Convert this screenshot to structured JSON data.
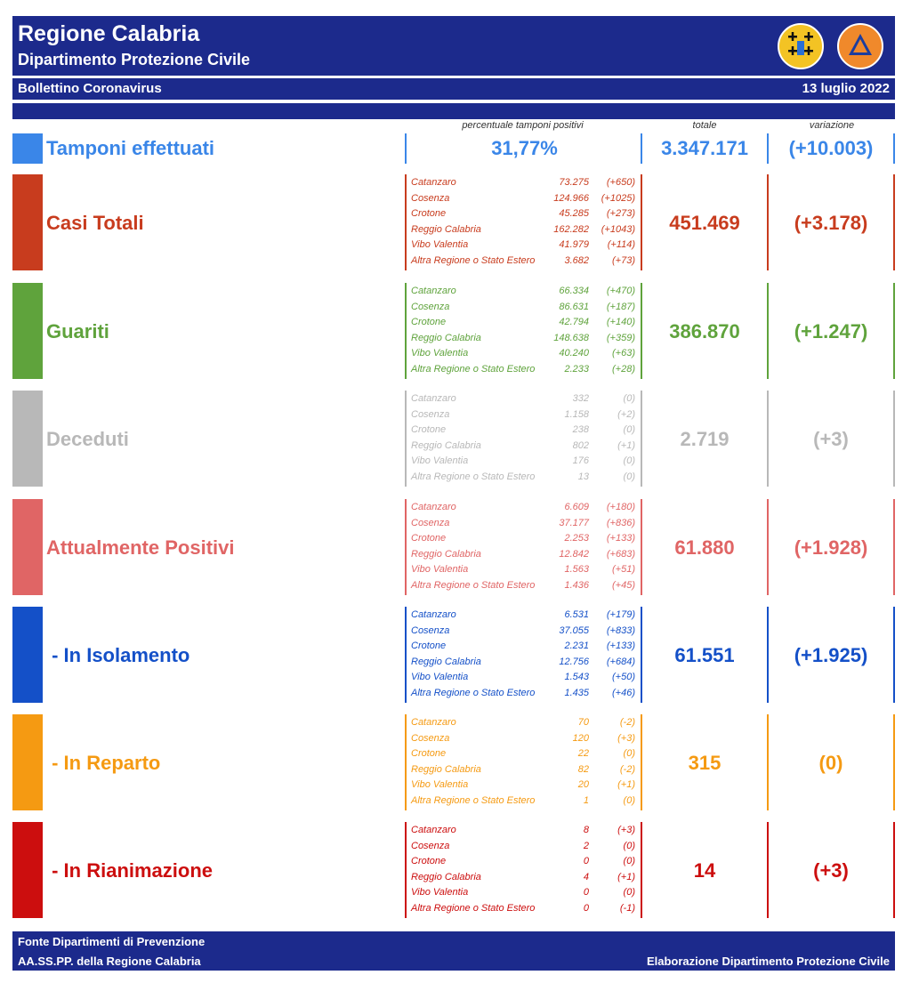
{
  "header": {
    "title": "Regione Calabria",
    "subtitle": "Dipartimento Protezione Civile",
    "bulletin": "Bollettino Coronavirus",
    "date": "13 luglio 2022"
  },
  "columns": {
    "percent_label": "percentuale tamponi positivi",
    "total_label": "totale",
    "change_label": "variazione"
  },
  "tamponi": {
    "label": "Tamponi effettuati",
    "percent": "31,77%",
    "total": "3.347.171",
    "change": "(+10.003)",
    "color": "#3a86e8"
  },
  "sections": [
    {
      "label": "Casi Totali",
      "color": "#c83c1e",
      "total": "451.469",
      "change": "(+3.178)",
      "rows": [
        {
          "name": "Catanzaro",
          "value": "73.275",
          "change": "(+650)"
        },
        {
          "name": "Cosenza",
          "value": "124.966",
          "change": "(+1025)"
        },
        {
          "name": "Crotone",
          "value": "45.285",
          "change": "(+273)"
        },
        {
          "name": "Reggio Calabria",
          "value": "162.282",
          "change": "(+1043)"
        },
        {
          "name": "Vibo Valentia",
          "value": "41.979",
          "change": "(+114)"
        },
        {
          "name": "Altra Regione o Stato Estero",
          "value": "3.682",
          "change": "(+73)"
        }
      ]
    },
    {
      "label": "Guariti",
      "color": "#5fa33c",
      "total": "386.870",
      "change": "(+1.247)",
      "rows": [
        {
          "name": "Catanzaro",
          "value": "66.334",
          "change": "(+470)"
        },
        {
          "name": "Cosenza",
          "value": "86.631",
          "change": "(+187)"
        },
        {
          "name": "Crotone",
          "value": "42.794",
          "change": "(+140)"
        },
        {
          "name": "Reggio Calabria",
          "value": "148.638",
          "change": "(+359)"
        },
        {
          "name": "Vibo Valentia",
          "value": "40.240",
          "change": "(+63)"
        },
        {
          "name": "Altra Regione o Stato Estero",
          "value": "2.233",
          "change": "(+28)"
        }
      ]
    },
    {
      "label": "Deceduti",
      "color": "#b8b8b8",
      "total": "2.719",
      "change": "(+3)",
      "rows": [
        {
          "name": "Catanzaro",
          "value": "332",
          "change": "(0)"
        },
        {
          "name": "Cosenza",
          "value": "1.158",
          "change": "(+2)"
        },
        {
          "name": "Crotone",
          "value": "238",
          "change": "(0)"
        },
        {
          "name": "Reggio Calabria",
          "value": "802",
          "change": "(+1)"
        },
        {
          "name": "Vibo Valentia",
          "value": "176",
          "change": "(0)"
        },
        {
          "name": "Altra Regione o Stato Estero",
          "value": "13",
          "change": "(0)"
        }
      ]
    },
    {
      "label": "Attualmente Positivi",
      "color": "#e06565",
      "total": "61.880",
      "change": "(+1.928)",
      "rows": [
        {
          "name": "Catanzaro",
          "value": "6.609",
          "change": "(+180)"
        },
        {
          "name": "Cosenza",
          "value": "37.177",
          "change": "(+836)"
        },
        {
          "name": "Crotone",
          "value": "2.253",
          "change": "(+133)"
        },
        {
          "name": "Reggio Calabria",
          "value": "12.842",
          "change": "(+683)"
        },
        {
          "name": "Vibo Valentia",
          "value": "1.563",
          "change": "(+51)"
        },
        {
          "name": "Altra Regione o Stato Estero",
          "value": "1.436",
          "change": "(+45)"
        }
      ]
    },
    {
      "label": " - In Isolamento",
      "color": "#1450c8",
      "total": "61.551",
      "change": "(+1.925)",
      "rows": [
        {
          "name": "Catanzaro",
          "value": "6.531",
          "change": "(+179)"
        },
        {
          "name": "Cosenza",
          "value": "37.055",
          "change": "(+833)"
        },
        {
          "name": "Crotone",
          "value": "2.231",
          "change": "(+133)"
        },
        {
          "name": "Reggio Calabria",
          "value": "12.756",
          "change": "(+684)"
        },
        {
          "name": "Vibo Valentia",
          "value": "1.543",
          "change": "(+50)"
        },
        {
          "name": "Altra Regione o Stato Estero",
          "value": "1.435",
          "change": "(+46)"
        }
      ]
    },
    {
      "label": " - In Reparto",
      "color": "#f59a12",
      "total": "315",
      "change": "(0)",
      "rows": [
        {
          "name": "Catanzaro",
          "value": "70",
          "change": "(-2)"
        },
        {
          "name": "Cosenza",
          "value": "120",
          "change": "(+3)"
        },
        {
          "name": "Crotone",
          "value": "22",
          "change": "(0)"
        },
        {
          "name": "Reggio Calabria",
          "value": "82",
          "change": "(-2)"
        },
        {
          "name": "Vibo Valentia",
          "value": "20",
          "change": "(+1)"
        },
        {
          "name": "Altra Regione o Stato Estero",
          "value": "1",
          "change": "(0)"
        }
      ]
    },
    {
      "label": " - In Rianimazione",
      "color": "#cc0e0e",
      "total": "14",
      "change": "(+3)",
      "rows": [
        {
          "name": "Catanzaro",
          "value": "8",
          "change": "(+3)"
        },
        {
          "name": "Cosenza",
          "value": "2",
          "change": "(0)"
        },
        {
          "name": "Crotone",
          "value": "0",
          "change": "(0)"
        },
        {
          "name": "Reggio Calabria",
          "value": "4",
          "change": "(+1)"
        },
        {
          "name": "Vibo Valentia",
          "value": "0",
          "change": "(0)"
        },
        {
          "name": "Altra Regione o Stato Estero",
          "value": "0",
          "change": "(-1)"
        }
      ]
    }
  ],
  "footer": {
    "source1": "Fonte Dipartimenti di Prevenzione",
    "source2": "AA.SS.PP.  della Regione Calabria",
    "credit": "Elaborazione Dipartimento Protezione Civile"
  }
}
